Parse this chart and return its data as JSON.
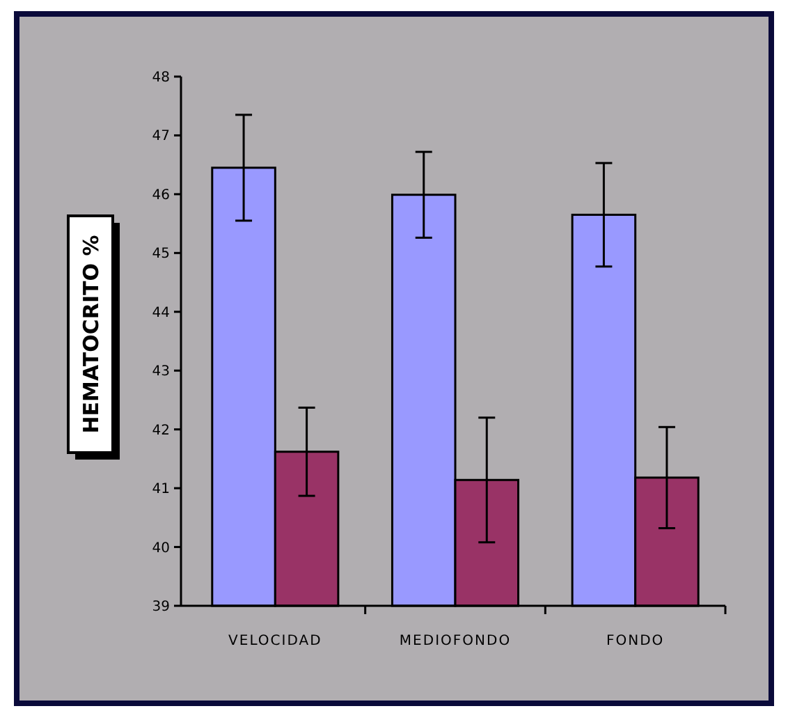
{
  "chart_data": {
    "type": "bar",
    "ylabel": "HEMATOCRITO %",
    "categories": [
      "VELOCIDAD",
      "MEDIOFONDO",
      "FONDO"
    ],
    "series": [
      {
        "color": "#9999ff",
        "values": [
          46.45,
          45.99,
          45.65
        ],
        "errors": [
          0.9,
          0.73,
          0.88
        ]
      },
      {
        "color": "#993366",
        "values": [
          41.62,
          41.14,
          41.18
        ],
        "errors": [
          0.75,
          1.06,
          0.86
        ]
      }
    ],
    "ylim": [
      39,
      48
    ],
    "yticks": [
      39,
      40,
      41,
      42,
      43,
      44,
      45,
      46,
      47,
      48
    ],
    "grid": false
  }
}
